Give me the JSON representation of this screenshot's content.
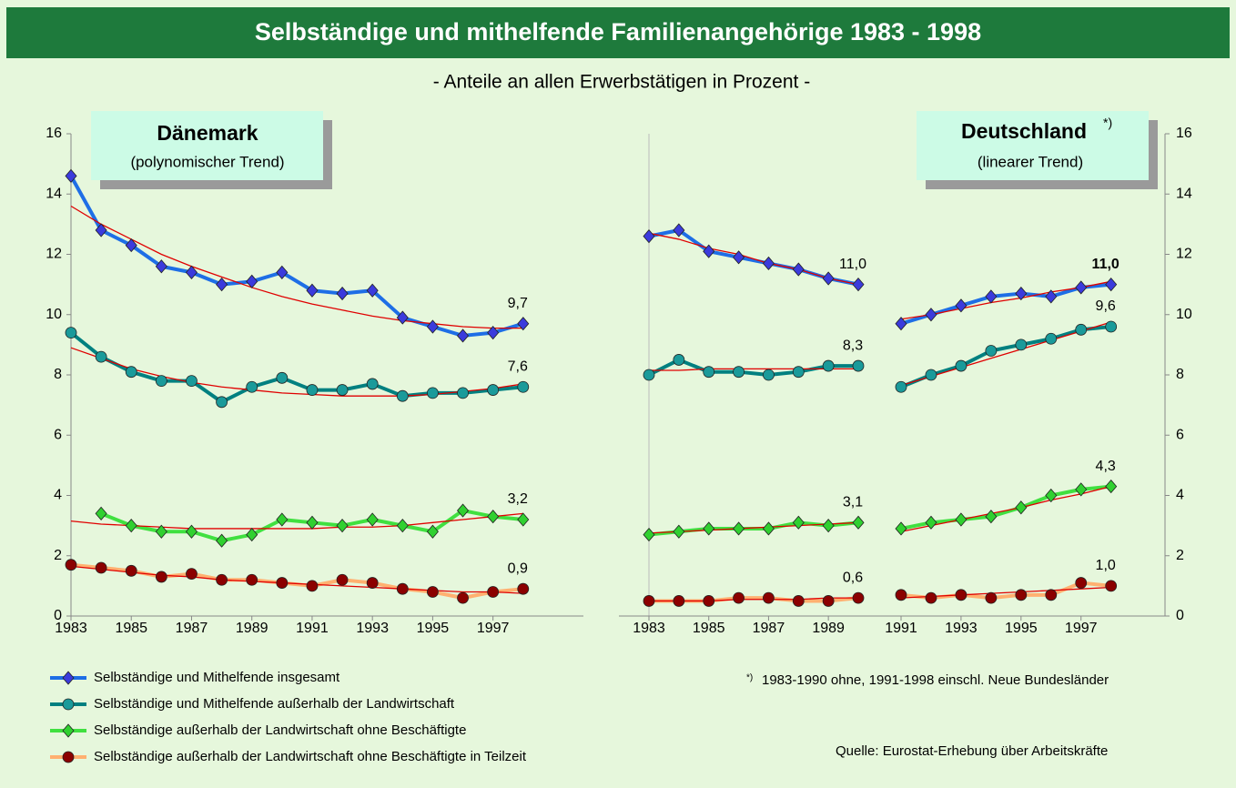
{
  "title": "Selbständige und mithelfende Familienangehörige 1983 - 1998",
  "subtitle": "- Anteile an allen Erwerbstätigen in Prozent -",
  "footnote_mark": "*)",
  "footnote": "1983-1990 ohne, 1991-1998 einschl. Neue Bundesländer",
  "source": "Quelle: Eurostat-Erhebung über Arbeitskräfte",
  "trend_color": "#e00000",
  "chart_data": [
    {
      "type": "line",
      "panel_title": "Dänemark",
      "panel_subtitle": "(polynomischer Trend)",
      "x": [
        1983,
        1984,
        1985,
        1986,
        1987,
        1988,
        1989,
        1990,
        1991,
        1992,
        1993,
        1994,
        1995,
        1996,
        1997,
        1998
      ],
      "xlim": [
        1983,
        2000
      ],
      "xticks": [
        1983,
        1985,
        1987,
        1989,
        1991,
        1993,
        1995,
        1997
      ],
      "ylim": [
        0,
        16
      ],
      "yticks": [
        0,
        2,
        4,
        6,
        8,
        10,
        12,
        14,
        16
      ],
      "series": [
        {
          "name": "Selbständige und Mithelfende insgesamt",
          "color": "#1e6ee6",
          "marker": "diamond",
          "marker_color": "#3b3bdc",
          "values": [
            14.6,
            12.8,
            12.3,
            11.6,
            11.4,
            11.0,
            11.1,
            11.4,
            10.8,
            10.7,
            10.8,
            9.9,
            9.6,
            9.3,
            9.4,
            9.7
          ],
          "value_labels": [
            null,
            null,
            null,
            null,
            null,
            null,
            null,
            null,
            null,
            null,
            null,
            null,
            null,
            null,
            null,
            "9,7"
          ],
          "trend": [
            13.6,
            13.0,
            12.5,
            12.0,
            11.6,
            11.25,
            10.9,
            10.6,
            10.35,
            10.15,
            9.95,
            9.8,
            9.7,
            9.6,
            9.55,
            9.55
          ]
        },
        {
          "name": "Selbständige und Mithelfende außerhalb der Landwirtschaft",
          "color": "#008080",
          "marker": "circle",
          "marker_color": "#1a9a9a",
          "values": [
            9.4,
            8.6,
            8.1,
            7.8,
            7.8,
            7.1,
            7.6,
            7.9,
            7.5,
            7.5,
            7.7,
            7.3,
            7.4,
            7.4,
            7.5,
            7.6
          ],
          "value_labels": [
            null,
            null,
            null,
            null,
            null,
            null,
            null,
            null,
            null,
            null,
            null,
            null,
            null,
            null,
            null,
            "7,6"
          ],
          "trend": [
            8.9,
            8.55,
            8.2,
            7.95,
            7.75,
            7.6,
            7.5,
            7.4,
            7.35,
            7.3,
            7.3,
            7.3,
            7.35,
            7.45,
            7.55,
            7.7
          ]
        },
        {
          "name": "Selbständige außerhalb der Landwirtschaft ohne Beschäftigte",
          "color": "#40e040",
          "marker": "diamond",
          "marker_color": "#30d030",
          "values": [
            null,
            3.4,
            3.0,
            2.8,
            2.8,
            2.5,
            2.7,
            3.2,
            3.1,
            3.0,
            3.2,
            3.0,
            2.8,
            3.5,
            3.3,
            3.2
          ],
          "value_labels": [
            null,
            null,
            null,
            null,
            null,
            null,
            null,
            null,
            null,
            null,
            null,
            null,
            null,
            null,
            null,
            "3,2"
          ],
          "trend": [
            3.15,
            3.05,
            3.0,
            2.95,
            2.9,
            2.9,
            2.9,
            2.9,
            2.9,
            2.95,
            2.95,
            3.0,
            3.1,
            3.2,
            3.3,
            3.4
          ]
        },
        {
          "name": "Selbständige außerhalb der Landwirtschaft ohne Beschäftigte in Teilzeit",
          "color": "#ffb070",
          "marker": "circle",
          "marker_color": "#8b0000",
          "values": [
            1.7,
            1.6,
            1.5,
            1.3,
            1.4,
            1.2,
            1.2,
            1.1,
            1.0,
            1.2,
            1.1,
            0.9,
            0.8,
            0.6,
            0.8,
            0.9
          ],
          "value_labels": [
            null,
            null,
            null,
            null,
            null,
            null,
            null,
            null,
            null,
            null,
            null,
            null,
            null,
            null,
            null,
            "0,9"
          ],
          "trend": [
            1.65,
            1.55,
            1.45,
            1.35,
            1.3,
            1.2,
            1.15,
            1.1,
            1.05,
            1.0,
            0.95,
            0.9,
            0.85,
            0.8,
            0.8,
            0.75
          ]
        }
      ]
    },
    {
      "type": "line",
      "x": [
        1983,
        1984,
        1985,
        1986,
        1987,
        1988,
        1989,
        1990
      ],
      "xlim": [
        1983,
        1990
      ],
      "xticks": [
        1983,
        1985,
        1987,
        1989
      ],
      "ylim": [
        0,
        16
      ],
      "series": [
        {
          "color": "#1e6ee6",
          "marker": "diamond",
          "marker_color": "#3b3bdc",
          "values": [
            12.6,
            12.8,
            12.1,
            11.9,
            11.7,
            11.5,
            11.2,
            11.0
          ],
          "value_labels": [
            null,
            null,
            null,
            null,
            null,
            null,
            null,
            "11,0"
          ],
          "trend": [
            12.7,
            12.5,
            12.2,
            12.0,
            11.7,
            11.5,
            11.2,
            11.0
          ]
        },
        {
          "color": "#008080",
          "marker": "circle",
          "marker_color": "#1a9a9a",
          "values": [
            8.0,
            8.5,
            8.1,
            8.1,
            8.0,
            8.1,
            8.3,
            8.3
          ],
          "value_labels": [
            null,
            null,
            null,
            null,
            null,
            null,
            null,
            "8,3"
          ],
          "trend": [
            8.15,
            8.15,
            8.2,
            8.2,
            8.2,
            8.2,
            8.2,
            8.2
          ]
        },
        {
          "color": "#40e040",
          "marker": "diamond",
          "marker_color": "#30d030",
          "values": [
            2.7,
            2.8,
            2.9,
            2.9,
            2.9,
            3.1,
            3.0,
            3.1
          ],
          "value_labels": [
            null,
            null,
            null,
            null,
            null,
            null,
            null,
            "3,1"
          ],
          "trend": [
            2.75,
            2.8,
            2.85,
            2.9,
            2.95,
            3.0,
            3.05,
            3.1
          ]
        },
        {
          "color": "#ffb070",
          "marker": "circle",
          "marker_color": "#8b0000",
          "values": [
            0.5,
            0.5,
            0.5,
            0.6,
            0.6,
            0.5,
            0.5,
            0.6
          ],
          "value_labels": [
            null,
            null,
            null,
            null,
            null,
            null,
            null,
            "0,6"
          ],
          "trend": [
            0.5,
            0.5,
            0.5,
            0.55,
            0.55,
            0.55,
            0.6,
            0.6
          ]
        }
      ]
    },
    {
      "type": "line",
      "panel_title": "Deutschland",
      "panel_subtitle": "(linearer Trend)",
      "x": [
        1991,
        1992,
        1993,
        1994,
        1995,
        1996,
        1997,
        1998
      ],
      "xlim": [
        1991,
        1999.8
      ],
      "xticks": [
        1991,
        1993,
        1995,
        1997
      ],
      "ylim": [
        0,
        16
      ],
      "yticks": [
        0,
        2,
        4,
        6,
        8,
        10,
        12,
        14,
        16
      ],
      "series": [
        {
          "color": "#1e6ee6",
          "marker": "diamond",
          "marker_color": "#3b3bdc",
          "label_bold": true,
          "values": [
            9.7,
            10.0,
            10.3,
            10.6,
            10.7,
            10.6,
            10.9,
            11.0
          ],
          "value_labels": [
            null,
            null,
            null,
            null,
            null,
            null,
            null,
            "11,0"
          ],
          "trend": [
            9.85,
            10.0,
            10.2,
            10.4,
            10.55,
            10.75,
            10.9,
            11.1
          ]
        },
        {
          "color": "#008080",
          "marker": "circle",
          "marker_color": "#1a9a9a",
          "values": [
            7.6,
            8.0,
            8.3,
            8.8,
            9.0,
            9.2,
            9.5,
            9.6
          ],
          "value_labels": [
            null,
            null,
            null,
            null,
            null,
            null,
            null,
            "9,6"
          ],
          "trend": [
            7.65,
            7.95,
            8.25,
            8.55,
            8.85,
            9.15,
            9.45,
            9.75
          ]
        },
        {
          "color": "#40e040",
          "marker": "diamond",
          "marker_color": "#30d030",
          "values": [
            2.9,
            3.1,
            3.2,
            3.3,
            3.6,
            4.0,
            4.2,
            4.3
          ],
          "value_labels": [
            null,
            null,
            null,
            null,
            null,
            null,
            null,
            "4,3"
          ],
          "trend": [
            2.8,
            3.0,
            3.2,
            3.4,
            3.6,
            3.85,
            4.05,
            4.3
          ]
        },
        {
          "color": "#ffb070",
          "marker": "circle",
          "marker_color": "#8b0000",
          "values": [
            0.7,
            0.6,
            0.7,
            0.6,
            0.7,
            0.7,
            1.1,
            1.0
          ],
          "value_labels": [
            null,
            null,
            null,
            null,
            null,
            null,
            null,
            "1,0"
          ],
          "trend": [
            0.6,
            0.65,
            0.7,
            0.75,
            0.8,
            0.85,
            0.9,
            0.95
          ]
        }
      ]
    }
  ]
}
